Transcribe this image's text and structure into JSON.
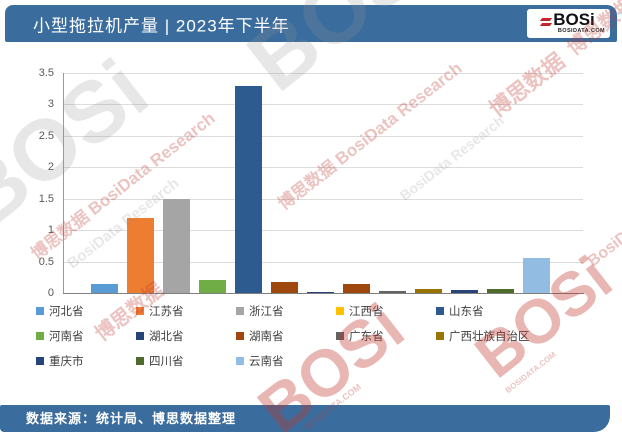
{
  "header": {
    "title": "小型拖拉机产量 | 2023年下半年",
    "logo": {
      "text": "BOSi",
      "domain": "BOSIDATA.COM"
    }
  },
  "footer": {
    "source": "数据来源：统计局、博思数据整理"
  },
  "watermark": {
    "cn": "博思数据",
    "en": "BosiData Research",
    "full": "博思数据 BosiData Research",
    "logo": "BOSi",
    "domain": "BOSIDATA.COM"
  },
  "colors": {
    "theme_blue": "#3A6D9E",
    "grid": "#DCDCDC",
    "axis": "#7F7F7F",
    "tick_text": "#595959",
    "legend_text": "#404040",
    "logo_red": "#C1272D"
  },
  "chart_data": {
    "type": "bar",
    "title": "小型拖拉机产量 | 2023年下半年",
    "xlabel": "",
    "ylabel": "",
    "ylim": [
      0,
      3.5
    ],
    "yticks": [
      "0",
      "0.5",
      "1",
      "1.5",
      "2",
      "2.5",
      "3",
      "3.5"
    ],
    "grid": true,
    "x_axis_labels_shown": false,
    "legend_position": "bottom",
    "legend_columns": 5,
    "categories": [
      "河北省",
      "江苏省",
      "浙江省",
      "江西省",
      "山东省",
      "河南省",
      "湖北省",
      "湖南省",
      "广东省",
      "广西壮族自治区",
      "重庆市",
      "四川省",
      "云南省"
    ],
    "values": [
      0.15,
      1.2,
      1.5,
      0.2,
      3.3,
      0.18,
      0.01,
      0.15,
      0.03,
      0.07,
      0.05,
      0.07,
      0.55
    ],
    "bar_colors": [
      "#5B9BD5",
      "#ED7D31",
      "#A5A5A5",
      "#70AD47",
      "#2E5B8F",
      "#9E480E",
      "#264478",
      "#9E480E",
      "#636363",
      "#997300",
      "#264478",
      "#4E6B2B",
      "#93BCE2"
    ],
    "legend_colors": [
      "#5B9BD5",
      "#ED7D31",
      "#A5A5A5",
      "#FFC000",
      "#2E5B8F",
      "#70AD47",
      "#264478",
      "#9E480E",
      "#636363",
      "#997300",
      "#264478",
      "#4E6B2B",
      "#93BCE2"
    ]
  }
}
